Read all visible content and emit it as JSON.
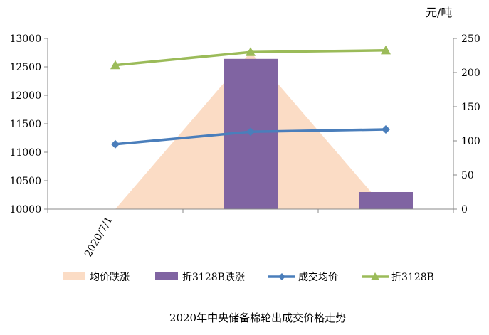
{
  "chart_data": {
    "type": "bar",
    "title": "2020年中央储备棉轮出成交价格走势",
    "right_axis_unit": "元/吨",
    "x_tick_label": "2020/7/1",
    "categories": [
      "",
      "",
      ""
    ],
    "left_axis": {
      "ylim": [
        10000,
        13000
      ],
      "ticks": [
        10000,
        10500,
        11000,
        11500,
        12000,
        12500,
        13000
      ]
    },
    "right_axis": {
      "ylim": [
        0,
        250
      ],
      "ticks": [
        0,
        50,
        100,
        150,
        200,
        250
      ]
    },
    "series": [
      {
        "name": "均价跌涨",
        "type": "area",
        "axis": "right",
        "color": "#fbdcc5",
        "x": [
          0,
          1,
          2
        ],
        "values": [
          0,
          230,
          0
        ]
      },
      {
        "name": "折3128B跌涨",
        "type": "bar",
        "axis": "right",
        "color": "#8064a2",
        "values": [
          0,
          220,
          25
        ]
      },
      {
        "name": "成交均价",
        "type": "line",
        "axis": "left",
        "color": "#4a7ebb",
        "marker": "diamond",
        "values": [
          11140,
          11360,
          11400
        ]
      },
      {
        "name": "折3128B",
        "type": "line",
        "axis": "left",
        "color": "#9bbb59",
        "marker": "triangle",
        "values": [
          12530,
          12760,
          12790
        ]
      }
    ],
    "grid": false,
    "legend_position": "bottom"
  }
}
